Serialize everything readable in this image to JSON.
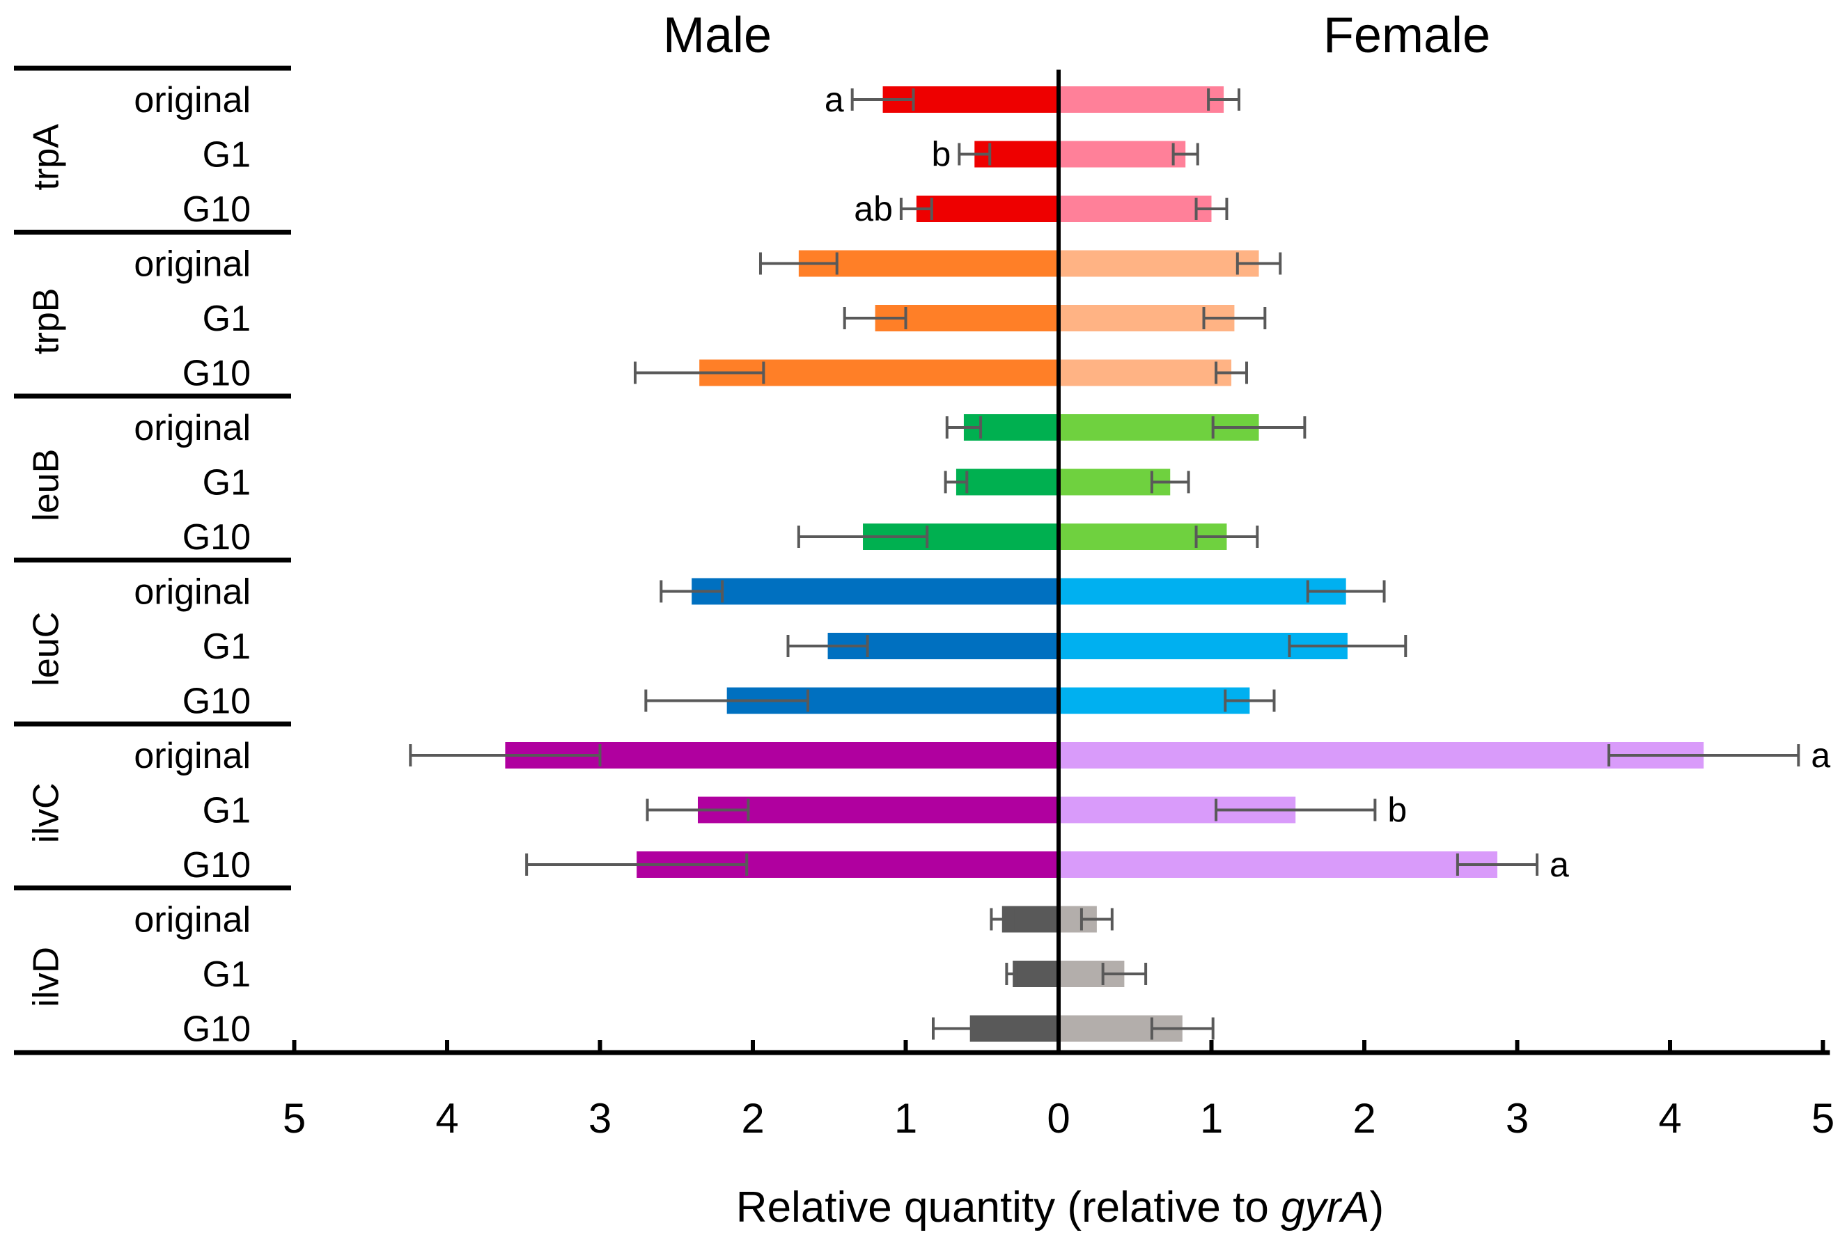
{
  "chart_data": {
    "type": "bar",
    "orientation": "horizontal-back-to-back",
    "left_title": "Male",
    "right_title": "Female",
    "xlabel": "Relative quantity (relative to ",
    "xlabel_italic": "gyrA",
    "xlabel_end": ")",
    "xlim": [
      0,
      5
    ],
    "ticks_left": [
      "5",
      "4",
      "3",
      "2",
      "1",
      "0"
    ],
    "ticks_right": [
      "1",
      "2",
      "3",
      "4",
      "5"
    ],
    "groups": [
      {
        "gene": "trpA",
        "male_color": "#ee0000",
        "female_color": "#ff8099",
        "rows": [
          {
            "label": "original",
            "male": 1.15,
            "male_err": 0.2,
            "male_sig": "a",
            "female": 1.08,
            "female_err": 0.1,
            "female_sig": ""
          },
          {
            "label": "G1",
            "male": 0.55,
            "male_err": 0.1,
            "male_sig": "b",
            "female": 0.83,
            "female_err": 0.08,
            "female_sig": ""
          },
          {
            "label": "G10",
            "male": 0.93,
            "male_err": 0.1,
            "male_sig": "ab",
            "female": 1.0,
            "female_err": 0.1,
            "female_sig": ""
          }
        ]
      },
      {
        "gene": "trpB",
        "male_color": "#ff7f27",
        "female_color": "#ffb384",
        "rows": [
          {
            "label": "original",
            "male": 1.7,
            "male_err": 0.25,
            "male_sig": "",
            "female": 1.31,
            "female_err": 0.14,
            "female_sig": ""
          },
          {
            "label": "G1",
            "male": 1.2,
            "male_err": 0.2,
            "male_sig": "",
            "female": 1.15,
            "female_err": 0.2,
            "female_sig": ""
          },
          {
            "label": "G10",
            "male": 2.35,
            "male_err": 0.42,
            "male_sig": "",
            "female": 1.13,
            "female_err": 0.1,
            "female_sig": ""
          }
        ]
      },
      {
        "gene": "leuB",
        "male_color": "#00b050",
        "female_color": "#6fd13f",
        "rows": [
          {
            "label": "original",
            "male": 0.62,
            "male_err": 0.11,
            "male_sig": "",
            "female": 1.31,
            "female_err": 0.3,
            "female_sig": ""
          },
          {
            "label": "G1",
            "male": 0.67,
            "male_err": 0.07,
            "male_sig": "",
            "female": 0.73,
            "female_err": 0.12,
            "female_sig": ""
          },
          {
            "label": "G10",
            "male": 1.28,
            "male_err": 0.42,
            "male_sig": "",
            "female": 1.1,
            "female_err": 0.2,
            "female_sig": ""
          }
        ]
      },
      {
        "gene": "leuC",
        "male_color": "#0070c0",
        "female_color": "#00b0f0",
        "rows": [
          {
            "label": "original",
            "male": 2.4,
            "male_err": 0.2,
            "male_sig": "",
            "female": 1.88,
            "female_err": 0.25,
            "female_sig": ""
          },
          {
            "label": "G1",
            "male": 1.51,
            "male_err": 0.26,
            "male_sig": "",
            "female": 1.89,
            "female_err": 0.38,
            "female_sig": ""
          },
          {
            "label": "G10",
            "male": 2.17,
            "male_err": 0.53,
            "male_sig": "",
            "female": 1.25,
            "female_err": 0.16,
            "female_sig": ""
          }
        ]
      },
      {
        "gene": "ilvC",
        "male_color": "#b0009f",
        "female_color": "#d99bfa",
        "rows": [
          {
            "label": "original",
            "male": 3.62,
            "male_err": 0.62,
            "male_sig": "",
            "female": 4.22,
            "female_err": 0.62,
            "female_sig": "a"
          },
          {
            "label": "G1",
            "male": 2.36,
            "male_err": 0.33,
            "male_sig": "",
            "female": 1.55,
            "female_err": 0.52,
            "female_sig": "b"
          },
          {
            "label": "G10",
            "male": 2.76,
            "male_err": 0.72,
            "male_sig": "",
            "female": 2.87,
            "female_err": 0.26,
            "female_sig": "a"
          }
        ]
      },
      {
        "gene": "ilvD",
        "male_color": "#595959",
        "female_color": "#b3aeab",
        "rows": [
          {
            "label": "original",
            "male": 0.37,
            "male_err": 0.07,
            "male_sig": "",
            "female": 0.25,
            "female_err": 0.1,
            "female_sig": ""
          },
          {
            "label": "G1",
            "male": 0.3,
            "male_err": 0.04,
            "male_sig": "",
            "female": 0.43,
            "female_err": 0.14,
            "female_sig": ""
          },
          {
            "label": "G10",
            "male": 0.58,
            "male_err": 0.24,
            "male_sig": "",
            "female": 0.81,
            "female_err": 0.2,
            "female_sig": ""
          }
        ]
      }
    ]
  }
}
